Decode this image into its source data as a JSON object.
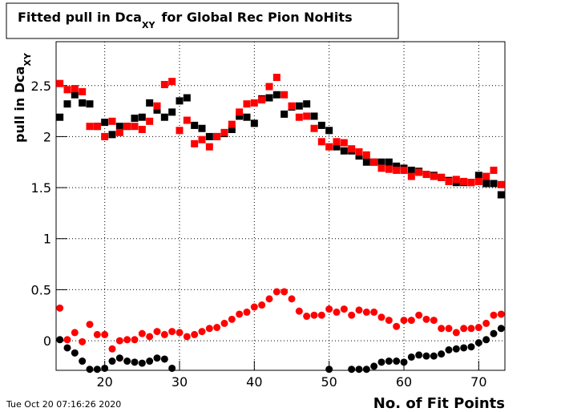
{
  "chart_data": {
    "type": "scatter",
    "title": "Fitted pull in Dca",
    "title_subscript": "XY",
    "title_rest": "for Global Rec Pion NoHits",
    "y_label": "pull in Dca",
    "y_label_subscript": "XY",
    "x_label": "No. of Fit Points",
    "timestamp": "Tue Oct 20 07:16:26 2020",
    "x": [
      14,
      15,
      16,
      17,
      18,
      19,
      20,
      21,
      22,
      23,
      24,
      25,
      26,
      27,
      28,
      29,
      30,
      31,
      32,
      33,
      34,
      35,
      36,
      37,
      38,
      39,
      40,
      41,
      42,
      43,
      44,
      45,
      46,
      47,
      48,
      49,
      50,
      51,
      52,
      53,
      54,
      55,
      56,
      57,
      58,
      59,
      60,
      61,
      62,
      63,
      64,
      65,
      66,
      67,
      68,
      69,
      70,
      71,
      72,
      73
    ],
    "series": [
      {
        "color": "#000000",
        "marker": "square",
        "values": [
          2.19,
          2.32,
          2.41,
          2.33,
          2.32,
          2.1,
          2.14,
          2.02,
          2.1,
          2.1,
          2.18,
          2.19,
          2.33,
          2.26,
          2.19,
          2.24,
          2.35,
          2.38,
          2.11,
          2.08,
          2.0,
          2.0,
          2.03,
          2.07,
          2.2,
          2.19,
          2.13,
          2.37,
          2.38,
          2.41,
          2.22,
          2.29,
          2.3,
          2.32,
          2.2,
          2.11,
          2.06,
          1.9,
          1.86,
          1.86,
          1.81,
          1.75,
          1.75,
          1.75,
          1.75,
          1.71,
          1.69,
          1.67,
          1.66,
          1.63,
          1.62,
          1.6,
          1.57,
          1.55,
          1.55,
          1.55,
          1.62,
          1.54,
          1.54,
          1.43
        ]
      },
      {
        "color": "#ff0000",
        "marker": "square",
        "values": [
          2.52,
          2.46,
          2.47,
          2.44,
          2.1,
          2.1,
          2.0,
          2.15,
          2.04,
          2.1,
          2.1,
          2.07,
          2.15,
          2.3,
          2.51,
          2.54,
          2.06,
          2.16,
          1.93,
          1.97,
          1.9,
          2.0,
          2.04,
          2.12,
          2.24,
          2.32,
          2.33,
          2.36,
          2.49,
          2.58,
          2.41,
          2.3,
          2.19,
          2.2,
          2.08,
          1.95,
          1.9,
          1.95,
          1.94,
          1.88,
          1.85,
          1.82,
          1.75,
          1.69,
          1.68,
          1.67,
          1.67,
          1.61,
          1.65,
          1.63,
          1.61,
          1.6,
          1.56,
          1.58,
          1.56,
          1.55,
          1.56,
          1.61,
          1.67,
          1.53
        ]
      },
      {
        "color": "#ff0000",
        "marker": "circle",
        "values": [
          0.32,
          0.01,
          0.08,
          -0.01,
          0.16,
          0.06,
          0.06,
          -0.08,
          0.0,
          0.01,
          0.01,
          0.07,
          0.04,
          0.09,
          0.06,
          0.09,
          0.08,
          0.04,
          0.06,
          0.09,
          0.12,
          0.13,
          0.17,
          0.21,
          0.26,
          0.28,
          0.33,
          0.35,
          0.41,
          0.48,
          0.48,
          0.41,
          0.29,
          0.24,
          0.25,
          0.25,
          0.31,
          0.28,
          0.31,
          0.25,
          0.3,
          0.28,
          0.28,
          0.23,
          0.2,
          0.14,
          0.2,
          0.2,
          0.25,
          0.21,
          0.2,
          0.12,
          0.12,
          0.08,
          0.12,
          0.12,
          0.13,
          0.17,
          0.25,
          0.26
        ]
      },
      {
        "color": "#000000",
        "marker": "circle",
        "values": [
          0.01,
          -0.07,
          -0.12,
          -0.2,
          -0.28,
          -0.28,
          -0.27,
          -0.2,
          -0.17,
          -0.2,
          -0.21,
          -0.22,
          -0.2,
          -0.17,
          -0.18,
          -0.27,
          null,
          null,
          null,
          null,
          null,
          null,
          null,
          null,
          null,
          null,
          null,
          null,
          null,
          null,
          null,
          null,
          null,
          null,
          null,
          null,
          -0.28,
          null,
          null,
          -0.28,
          -0.28,
          -0.28,
          -0.25,
          -0.21,
          -0.2,
          -0.2,
          -0.21,
          -0.16,
          -0.14,
          -0.15,
          -0.15,
          -0.13,
          -0.09,
          -0.08,
          -0.07,
          -0.06,
          -0.02,
          0.01,
          0.07,
          0.12
        ]
      }
    ],
    "xlim": [
      13.5,
      73.5
    ],
    "ylim": [
      -0.29,
      2.93
    ],
    "xticks": [
      20,
      30,
      40,
      50,
      60,
      70
    ],
    "yticks": [
      0,
      0.5,
      1,
      1.5,
      2,
      2.5
    ],
    "grid": true
  }
}
